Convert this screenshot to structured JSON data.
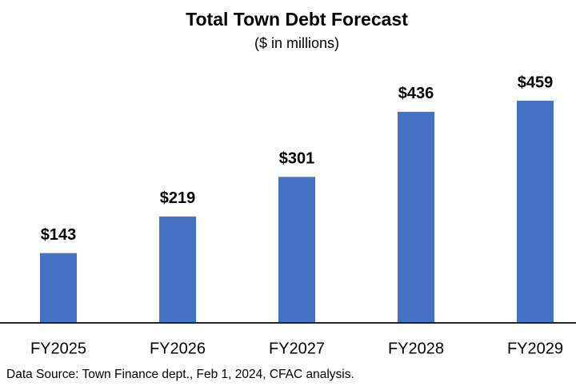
{
  "chart_data": {
    "type": "bar",
    "title": "Total Town Debt Forecast",
    "subtitle": "($ in millions)",
    "categories": [
      "FY2025",
      "FY2026",
      "FY2027",
      "FY2028",
      "FY2029"
    ],
    "values": [
      143,
      219,
      301,
      436,
      459
    ],
    "value_labels": [
      "$143",
      "$219",
      "$301",
      "$436",
      "$459"
    ],
    "color": "#4472c4",
    "source": "Data Source: Town Finance dept., Feb 1, 2024, CFAC analysis."
  }
}
